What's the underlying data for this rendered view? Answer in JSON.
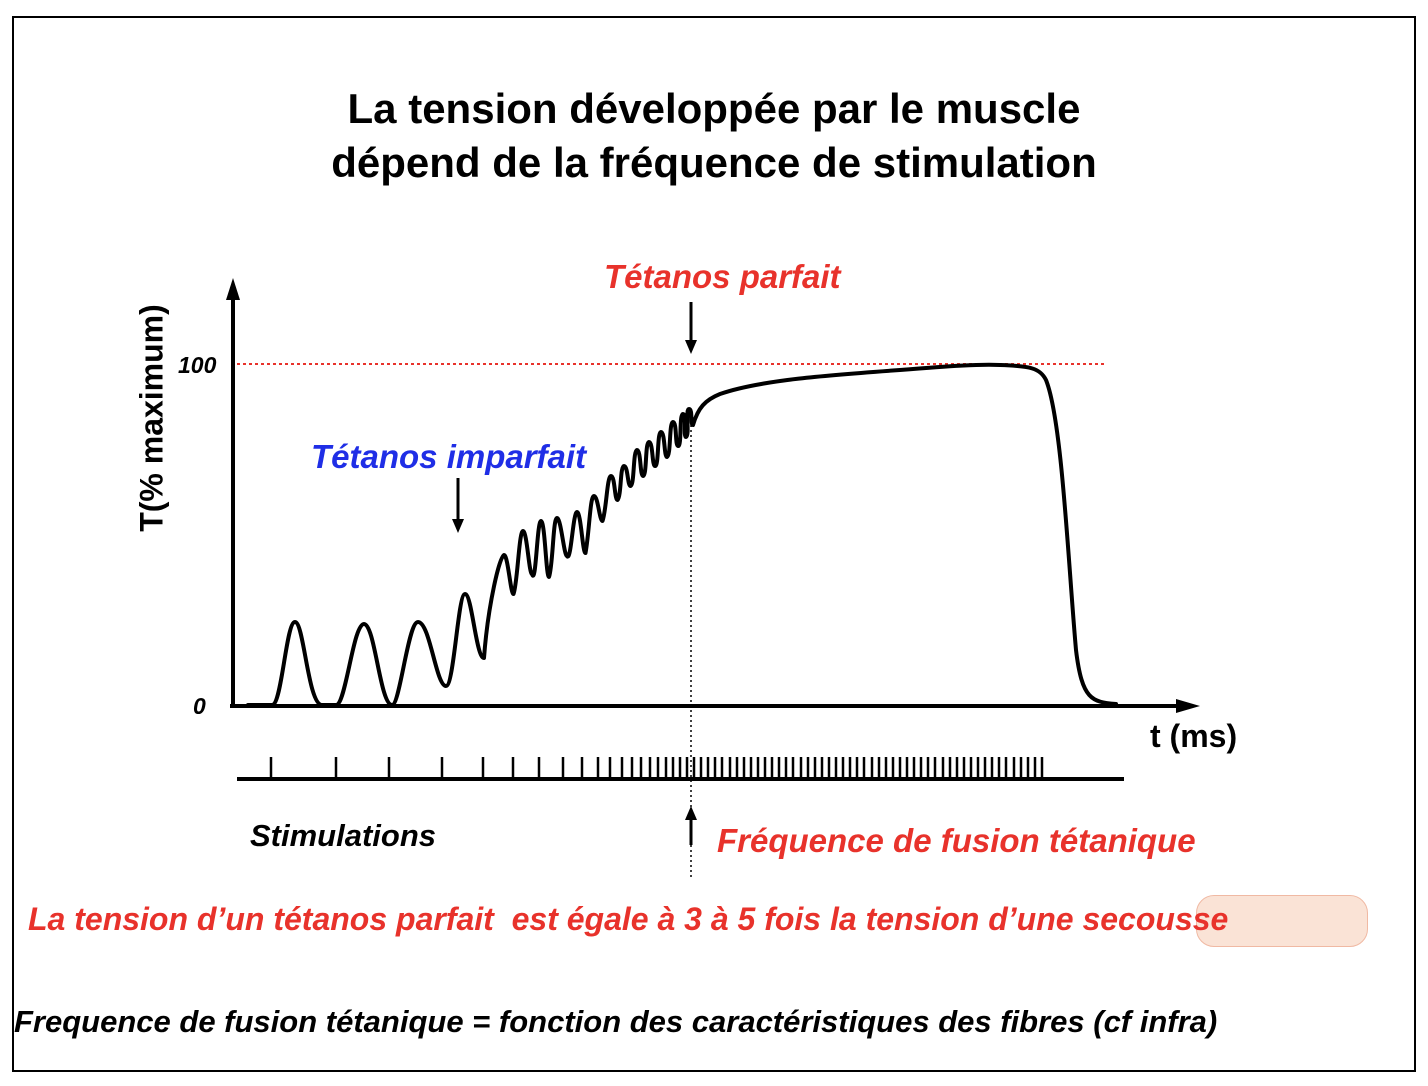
{
  "title": {
    "line1": "La tension développée par le muscle",
    "line2": "dépend de la fréquence de stimulation"
  },
  "axes": {
    "y_label": "T(% maximum)",
    "x_label": "t (ms)",
    "y_tick_max": "100",
    "y_tick_zero": "0"
  },
  "annotations": {
    "tetanos_parfait": "Tétanos parfait",
    "tetanos_imparfait": "Tétanos imparfait",
    "stimulations": "Stimulations",
    "frequence_fusion": "Fréquence de fusion tétanique"
  },
  "statements": {
    "tension_prefix": "La tension d’un tétanos parfait  est égale à 3 à 5 fois la tension d’une ",
    "tension_highlight": "secousse",
    "fusion_definition": "Frequence de fusion tétanique = fonction des caractéristiques des fibres (cf infra)"
  },
  "colors": {
    "red": "#e8322b",
    "blue": "#1f2ee6",
    "highlight": "#fae3d6"
  }
}
